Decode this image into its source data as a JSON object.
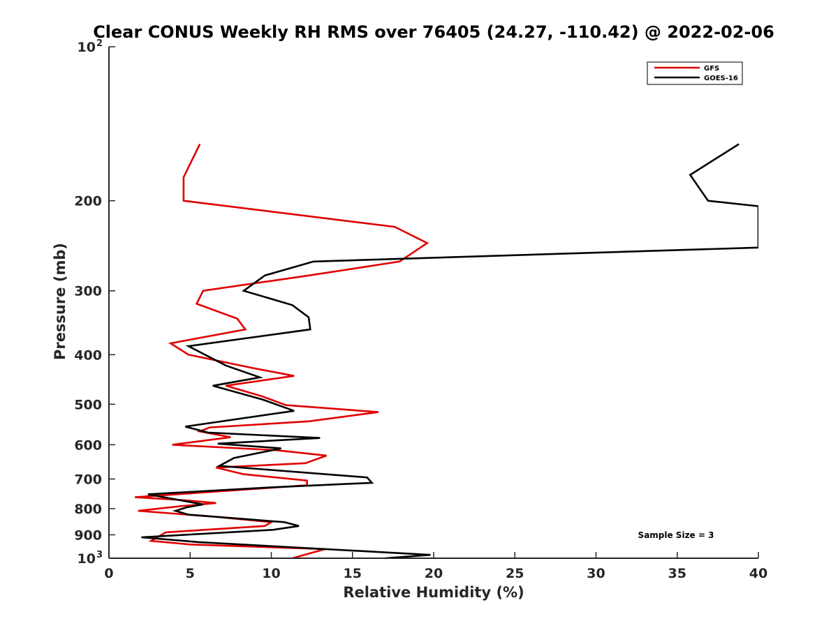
{
  "chart_data": {
    "type": "line",
    "title": "Clear CONUS Weekly RH RMS over 76405 (24.27, -110.42) @ 2022-02-06",
    "xlabel": "Relative Humidity (%)",
    "ylabel": "Pressure (mb)",
    "xlim": [
      0,
      40
    ],
    "ylim": [
      100,
      1000
    ],
    "yscale": "log",
    "y_reversed": true,
    "x_ticks": [
      "0",
      "5",
      "10",
      "15",
      "20",
      "25",
      "30",
      "35",
      "40"
    ],
    "y_ticks": [
      {
        "value": 100,
        "label": "10",
        "sup": "2"
      },
      {
        "value": 200,
        "label": "200"
      },
      {
        "value": 300,
        "label": "300"
      },
      {
        "value": 400,
        "label": "400"
      },
      {
        "value": 500,
        "label": "500"
      },
      {
        "value": 600,
        "label": "600"
      },
      {
        "value": 700,
        "label": "700"
      },
      {
        "value": 800,
        "label": "800"
      },
      {
        "value": 900,
        "label": "900"
      },
      {
        "value": 1000,
        "label": "10",
        "sup": "3"
      }
    ],
    "grid": false,
    "legend_position": "top-right",
    "annotation": "Sample Size = 3",
    "series": [
      {
        "name": "GFS",
        "color": "#e00000",
        "points": [
          [
            5.6,
            155
          ],
          [
            4.6,
            180
          ],
          [
            4.6,
            200
          ],
          [
            17.6,
            225
          ],
          [
            19.6,
            242
          ],
          [
            17.9,
            263
          ],
          [
            12.3,
            280
          ],
          [
            5.8,
            300
          ],
          [
            5.4,
            318
          ],
          [
            7.9,
            340
          ],
          [
            8.4,
            357
          ],
          [
            3.8,
            380
          ],
          [
            4.9,
            400
          ],
          [
            8.9,
            425
          ],
          [
            11.4,
            440
          ],
          [
            7.2,
            460
          ],
          [
            9.4,
            482
          ],
          [
            10.9,
            502
          ],
          [
            16.6,
            518
          ],
          [
            12.3,
            540
          ],
          [
            6.2,
            555
          ],
          [
            5.6,
            565
          ],
          [
            7.5,
            580
          ],
          [
            3.9,
            600
          ],
          [
            10.3,
            615
          ],
          [
            13.4,
            630
          ],
          [
            12.1,
            652
          ],
          [
            6.6,
            665
          ],
          [
            8.3,
            685
          ],
          [
            12.2,
            705
          ],
          [
            12.2,
            720
          ],
          [
            1.6,
            760
          ],
          [
            4.6,
            770
          ],
          [
            6.6,
            780
          ],
          [
            4.6,
            790
          ],
          [
            1.8,
            808
          ],
          [
            6.6,
            830
          ],
          [
            10.0,
            850
          ],
          [
            9.6,
            865
          ],
          [
            3.5,
            890
          ],
          [
            2.6,
            925
          ],
          [
            5.0,
            940
          ],
          [
            13.3,
            960
          ],
          [
            11.3,
            1000
          ]
        ]
      },
      {
        "name": "GOES-16",
        "color": "#000000",
        "points": [
          [
            38.8,
            155
          ],
          [
            35.8,
            178
          ],
          [
            36.9,
            200
          ],
          [
            40.0,
            205
          ],
          [
            40.0,
            247
          ],
          [
            12.6,
            263
          ],
          [
            9.6,
            280
          ],
          [
            8.3,
            300
          ],
          [
            11.3,
            320
          ],
          [
            12.3,
            338
          ],
          [
            12.4,
            357
          ],
          [
            4.9,
            385
          ],
          [
            7.2,
            420
          ],
          [
            9.3,
            443
          ],
          [
            6.4,
            460
          ],
          [
            9.5,
            490
          ],
          [
            11.4,
            515
          ],
          [
            4.7,
            553
          ],
          [
            6.1,
            568
          ],
          [
            13.0,
            582
          ],
          [
            6.7,
            597
          ],
          [
            10.6,
            610
          ],
          [
            7.7,
            637
          ],
          [
            6.8,
            660
          ],
          [
            15.9,
            695
          ],
          [
            16.2,
            712
          ],
          [
            9.6,
            728
          ],
          [
            2.4,
            750
          ],
          [
            5.8,
            785
          ],
          [
            4.8,
            795
          ],
          [
            4.1,
            808
          ],
          [
            4.9,
            822
          ],
          [
            10.8,
            850
          ],
          [
            11.7,
            865
          ],
          [
            10.1,
            880
          ],
          [
            2.0,
            910
          ],
          [
            5.5,
            930
          ],
          [
            19.8,
            985
          ],
          [
            17.0,
            1000
          ]
        ]
      }
    ]
  }
}
